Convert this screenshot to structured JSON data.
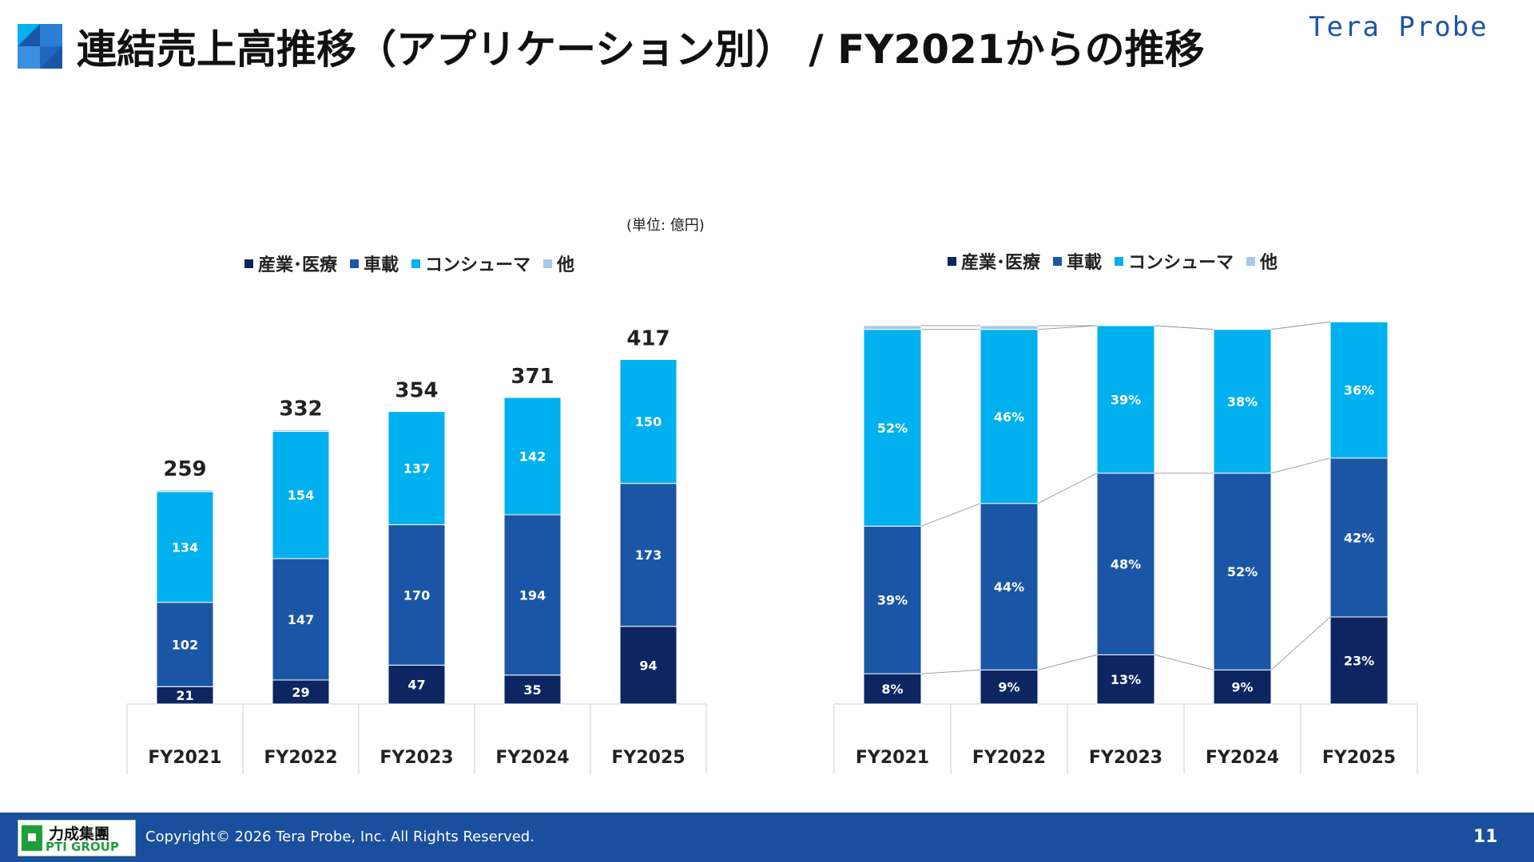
{
  "header": {
    "title": "連結売上高推移（アプリケーション別） / FY2021からの推移",
    "logo_text": "Tera Probe"
  },
  "unit_note": "(単位: 億円)",
  "colors": {
    "industrial_medical": "#0d2561",
    "automotive": "#1b56a6",
    "consumer": "#00b0ef",
    "other": "#a9c7e8",
    "footer": "#1a4f9d"
  },
  "legend": [
    {
      "label": "産業･医療",
      "color": "#0d2561"
    },
    {
      "label": "車載",
      "color": "#1b56a6"
    },
    {
      "label": "コンシューマ",
      "color": "#00b0ef"
    },
    {
      "label": "他",
      "color": "#a9c7e8"
    }
  ],
  "chart_data": [
    {
      "type": "bar",
      "stacked": true,
      "categories": [
        "FY2021",
        "FY2022",
        "FY2023",
        "FY2024",
        "FY2025"
      ],
      "series": [
        {
          "name": "産業･医療",
          "values": [
            21,
            29,
            47,
            35,
            94
          ],
          "labels": [
            "21",
            "29",
            "47",
            "35",
            "94"
          ]
        },
        {
          "name": "車載",
          "values": [
            102,
            147,
            170,
            194,
            173
          ],
          "labels": [
            "102",
            "147",
            "170",
            "194",
            "173"
          ]
        },
        {
          "name": "コンシューマ",
          "values": [
            134,
            154,
            137,
            142,
            150
          ],
          "labels": [
            "134",
            "154",
            "137",
            "142",
            "150"
          ]
        },
        {
          "name": "他",
          "values": [
            2,
            2,
            0,
            0,
            0
          ]
        }
      ],
      "totals": [
        259,
        332,
        354,
        371,
        417
      ]
    },
    {
      "type": "bar",
      "stacked": true,
      "percent": true,
      "categories": [
        "FY2021",
        "FY2022",
        "FY2023",
        "FY2024",
        "FY2025"
      ],
      "series": [
        {
          "name": "産業･医療",
          "values": [
            8,
            9,
            13,
            9,
            23
          ],
          "labels": [
            "8%",
            "9%",
            "13%",
            "9%",
            "23%"
          ]
        },
        {
          "name": "車載",
          "values": [
            39,
            44,
            48,
            52,
            42
          ],
          "labels": [
            "39%",
            "44%",
            "48%",
            "52%",
            "42%"
          ]
        },
        {
          "name": "コンシューマ",
          "values": [
            52,
            46,
            39,
            38,
            36
          ],
          "labels": [
            "52%",
            "46%",
            "39%",
            "38%",
            "36%"
          ]
        },
        {
          "name": "他",
          "values": [
            1,
            1,
            0,
            0,
            0
          ]
        }
      ]
    }
  ],
  "footer": {
    "group_logo_cn": "力成集團",
    "group_logo_en": "PTI GROUP",
    "copyright": "Copyright©  2026 Tera Probe, Inc. All Rights Reserved.",
    "page_number": "11"
  }
}
